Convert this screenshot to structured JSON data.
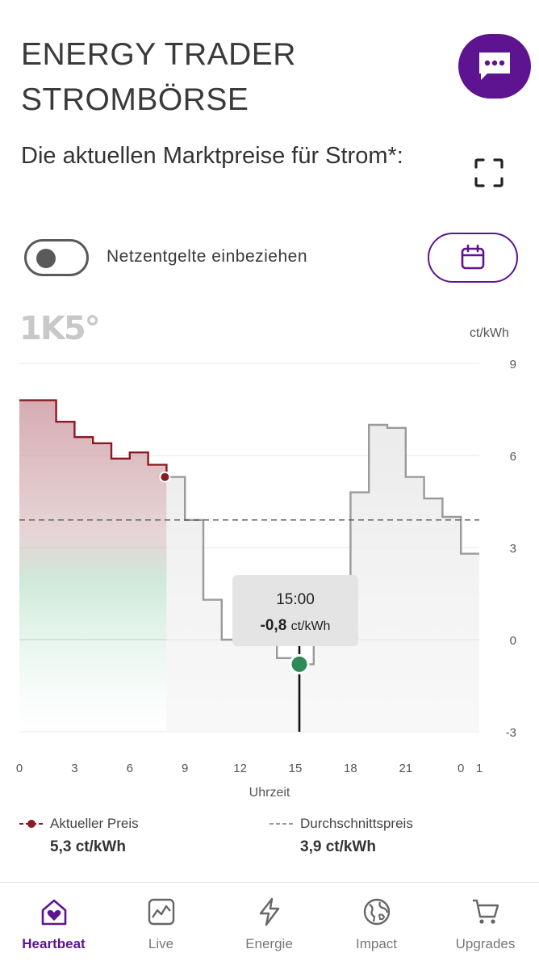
{
  "header": {
    "title_line1": "ENERGY TRADER",
    "title_line2": "STROMBÖRSE",
    "chat_icon": "chat-bubble-dots-icon"
  },
  "intro": {
    "subtitle": "Die aktuellen Marktpreise für Strom*:",
    "fullscreen_icon": "fullscreen-icon"
  },
  "controls": {
    "toggle_label": "Netzentgelte einbeziehen",
    "toggle_on": false,
    "calendar_icon": "calendar-icon"
  },
  "brand": {
    "watermark": "1K5°"
  },
  "chart_data": {
    "type": "line",
    "step": true,
    "unit": "ct/kWh",
    "xlabel": "Uhrzeit",
    "x_ticks": [
      "0",
      "3",
      "6",
      "9",
      "12",
      "15",
      "18",
      "21",
      "0",
      "1"
    ],
    "y_ticks": [
      "9",
      "6",
      "3",
      "0",
      "-3"
    ],
    "ylim": [
      -3,
      9
    ],
    "xlim": [
      0,
      25
    ],
    "hours": [
      0,
      1,
      2,
      3,
      4,
      5,
      6,
      7,
      8,
      9,
      10,
      11,
      12,
      13,
      14,
      15,
      16,
      17,
      18,
      19,
      20,
      21,
      22,
      23,
      24
    ],
    "values": [
      7.8,
      7.8,
      7.1,
      6.6,
      6.4,
      5.9,
      6.1,
      5.7,
      5.3,
      3.9,
      1.3,
      0.0,
      0.0,
      0.0,
      -0.6,
      -0.8,
      0.0,
      0.0,
      4.8,
      7.0,
      6.9,
      5.3,
      4.6,
      4.0,
      2.8
    ],
    "average": 3.9,
    "current_hour": 8,
    "tooltip": {
      "hour": 15,
      "time": "15:00",
      "value": "-0,8",
      "unit": "ct/kWh"
    },
    "colors": {
      "past_line": "#8b1a22",
      "future_line": "#9a9a9a",
      "current_dot": "#8b1a22",
      "selected_dot": "#2e8b57"
    }
  },
  "legend": {
    "current_label": "Aktueller Preis",
    "current_value": "5,3 ct/kWh",
    "average_label": "Durchschnittspreis",
    "average_value": "3,9 ct/kWh"
  },
  "nav": {
    "items": [
      {
        "label": "Heartbeat",
        "icon": "home-heart-icon",
        "active": true
      },
      {
        "label": "Live",
        "icon": "chart-icon",
        "active": false
      },
      {
        "label": "Energie",
        "icon": "lightning-icon",
        "active": false
      },
      {
        "label": "Impact",
        "icon": "globe-icon",
        "active": false
      },
      {
        "label": "Upgrades",
        "icon": "cart-icon",
        "active": false
      }
    ]
  },
  "theme": {
    "accent": "#5e1491"
  }
}
